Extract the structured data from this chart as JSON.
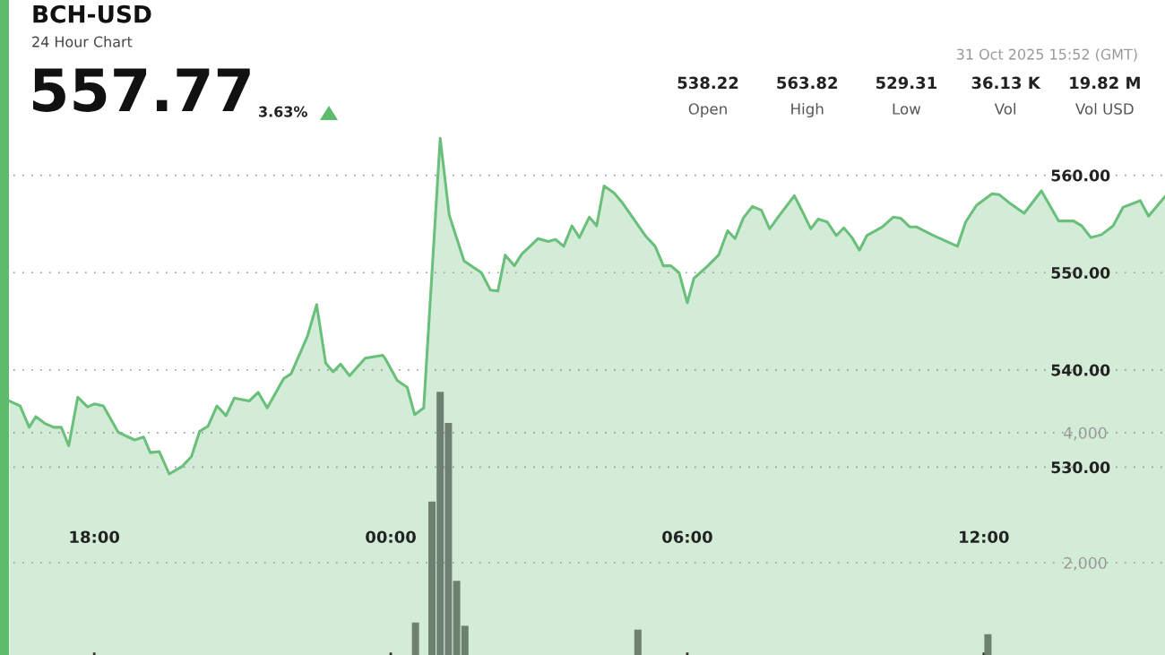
{
  "chart_data": {
    "type": "area",
    "title": "BCH-USD",
    "subtitle": "24 Hour Chart",
    "annotations": [
      "557.77",
      "3.63%",
      "31 Oct 2025 15:52 (GMT)",
      "538.22",
      "Open",
      "563.82",
      "High",
      "529.31",
      "Low",
      "36.13 K",
      "Vol",
      "19.82 M",
      "Vol USD"
    ],
    "series": [
      {
        "color": "#6abf7b",
        "x": [
          "2025-10-30T16:17",
          "2025-10-30T16:30",
          "2025-10-30T16:41",
          "2025-10-30T16:49",
          "2025-10-30T17:00",
          "2025-10-30T17:11",
          "2025-10-30T17:20",
          "2025-10-30T17:29",
          "2025-10-30T17:40",
          "2025-10-30T17:52",
          "2025-10-30T18:00",
          "2025-10-30T18:11",
          "2025-10-30T18:29",
          "2025-10-30T18:49",
          "2025-10-30T19:00",
          "2025-10-30T19:08",
          "2025-10-30T19:19",
          "2025-10-30T19:31",
          "2025-10-30T19:47",
          "2025-10-30T19:58",
          "2025-10-30T20:08",
          "2025-10-30T20:18",
          "2025-10-30T20:29",
          "2025-10-30T20:40",
          "2025-10-30T20:50",
          "2025-10-30T21:08",
          "2025-10-30T21:19",
          "2025-10-30T21:30",
          "2025-10-30T21:50",
          "2025-10-30T21:59",
          "2025-10-30T22:19",
          "2025-10-30T22:30",
          "2025-10-30T22:41",
          "2025-10-30T22:50",
          "2025-10-30T22:59",
          "2025-10-30T23:10",
          "2025-10-30T23:29",
          "2025-10-30T23:50",
          "2025-10-30T23:53",
          "2025-10-31T00:08",
          "2025-10-31T00:20",
          "2025-10-31T00:29",
          "2025-10-31T00:40",
          "2025-10-31T01:00",
          "2025-10-31T01:11",
          "2025-10-31T01:29",
          "2025-10-31T01:50",
          "2025-10-31T02:01",
          "2025-10-31T02:10",
          "2025-10-31T02:19",
          "2025-10-31T02:30",
          "2025-10-31T02:39",
          "2025-10-31T02:59",
          "2025-10-31T03:11",
          "2025-10-31T03:20",
          "2025-10-31T03:30",
          "2025-10-31T03:40",
          "2025-10-31T03:49",
          "2025-10-31T04:01",
          "2025-10-31T04:10",
          "2025-10-31T04:19",
          "2025-10-31T04:31",
          "2025-10-31T04:41",
          "2025-10-31T04:55",
          "2025-10-31T05:09",
          "2025-10-31T05:21",
          "2025-10-31T05:31",
          "2025-10-31T05:40",
          "2025-10-31T05:50",
          "2025-10-31T06:00",
          "2025-10-31T06:08",
          "2025-10-31T06:25",
          "2025-10-31T06:38",
          "2025-10-31T06:49",
          "2025-10-31T06:58",
          "2025-10-31T07:08",
          "2025-10-31T07:19",
          "2025-10-31T07:30",
          "2025-10-31T07:40",
          "2025-10-31T07:52",
          "2025-10-31T08:10",
          "2025-10-31T08:19",
          "2025-10-31T08:30",
          "2025-10-31T08:39",
          "2025-10-31T08:50",
          "2025-10-31T09:01",
          "2025-10-31T09:10",
          "2025-10-31T09:20",
          "2025-10-31T09:29",
          "2025-10-31T09:38",
          "2025-10-31T09:57",
          "2025-10-31T10:10",
          "2025-10-31T10:19",
          "2025-10-31T10:30",
          "2025-10-31T10:38",
          "2025-10-31T10:59",
          "2025-10-31T11:28",
          "2025-10-31T11:38",
          "2025-10-31T11:51",
          "2025-10-31T12:10",
          "2025-10-31T12:19",
          "2025-10-31T12:32",
          "2025-10-31T12:49",
          "2025-10-31T13:10",
          "2025-10-31T13:31",
          "2025-10-31T13:49",
          "2025-10-31T13:59",
          "2025-10-31T14:10",
          "2025-10-31T14:23",
          "2025-10-31T14:37",
          "2025-10-31T14:49",
          "2025-10-31T15:10",
          "2025-10-31T15:20",
          "2025-10-31T15:40"
        ],
        "values": [
          536.8,
          536.3,
          534.1,
          535.2,
          534.5,
          534.1,
          534.1,
          532.2,
          537.2,
          536.2,
          536.5,
          536.3,
          533.6,
          532.8,
          533.1,
          531.5,
          531.6,
          529.3,
          530.1,
          531.1,
          533.7,
          534.2,
          536.3,
          535.3,
          537.1,
          536.8,
          537.7,
          536.1,
          539.1,
          539.6,
          543.5,
          546.7,
          540.7,
          539.8,
          540.6,
          539.4,
          541.2,
          541.5,
          541.2,
          538.9,
          538.2,
          535.4,
          536.1,
          563.8,
          555.9,
          551.2,
          550.0,
          548.2,
          548.1,
          551.8,
          550.7,
          551.9,
          553.5,
          553.2,
          553.4,
          552.7,
          554.8,
          553.6,
          555.7,
          554.8,
          558.9,
          558.2,
          557.2,
          555.5,
          553.8,
          552.7,
          550.7,
          550.7,
          550.0,
          546.9,
          549.4,
          550.7,
          551.8,
          554.3,
          553.5,
          555.6,
          556.8,
          556.4,
          554.5,
          555.9,
          557.9,
          556.4,
          554.5,
          555.5,
          555.2,
          553.8,
          554.6,
          553.6,
          552.3,
          553.8,
          554.7,
          555.7,
          555.6,
          554.7,
          554.7,
          553.8,
          552.7,
          555.2,
          556.9,
          558.1,
          558.0,
          557.1,
          556.1,
          558.4,
          555.3,
          555.3,
          554.8,
          553.6,
          553.9,
          554.8,
          556.7,
          557.4,
          555.8,
          557.8
        ]
      },
      {
        "type": "bar",
        "axis": "y2",
        "color": "#6e806f",
        "x": [
          "2025-10-31T00:30",
          "2025-10-31T00:50",
          "2025-10-31T01:00",
          "2025-10-31T01:10",
          "2025-10-31T01:20",
          "2025-10-31T01:30",
          "2025-10-31T05:00",
          "2025-10-31T12:05"
        ],
        "values": [
          1080,
          2940,
          4630,
          4150,
          1720,
          1030,
          970,
          900
        ]
      }
    ],
    "xlim": [
      "2025-10-30T16:11",
      "2025-10-31T15:40"
    ],
    "xticks": [
      {
        "value": "2025-10-30T18:00",
        "label": "18:00"
      },
      {
        "value": "2025-10-31T00:00",
        "label": "00:00"
      },
      {
        "value": "2025-10-31T06:00",
        "label": "06:00"
      },
      {
        "value": "2025-10-31T12:00",
        "label": "12:00"
      }
    ],
    "ylim": [
      510.7,
      564.2
    ],
    "yticks": [
      {
        "value": 530,
        "label": "530.00"
      },
      {
        "value": 540,
        "label": "540.00"
      },
      {
        "value": 550,
        "label": "550.00"
      },
      {
        "value": 560,
        "label": "560.00"
      }
    ],
    "y2lim": [
      580,
      8590
    ],
    "y2ticks": [
      {
        "value": 2000,
        "label": "2,000"
      },
      {
        "value": 4000,
        "label": "4,000"
      }
    ],
    "grid": "y"
  }
}
